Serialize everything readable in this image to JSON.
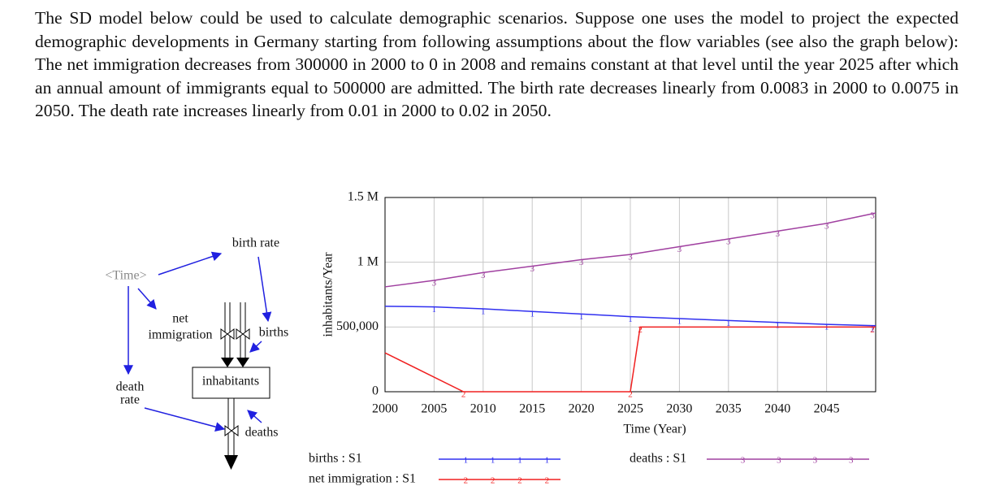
{
  "paragraph": "The SD model below could be used to calculate demographic scenarios. Suppose one uses the model to project the expected demographic developments in Germany starting from following assumptions about the flow variables (see also the graph below): The net immigration decreases from 300000 in 2000 to 0 in 2008 and remains constant at that level until the year 2025 after which an annual amount of immigrants equal to 500000 are admitted. The birth rate decreases linearly from 0.0083 in 2000 to 0.0075 in 2050. The death rate increases linearly from 0.01 in 2000 to 0.02 in 2050.",
  "diagram": {
    "nodes": [
      {
        "label": [
          "<Time>"
        ]
      },
      {
        "label": [
          "birth rate"
        ]
      },
      {
        "label": [
          "net",
          "immigration"
        ]
      },
      {
        "label": [
          "births"
        ]
      },
      {
        "label": [
          "inhabitants"
        ]
      },
      {
        "label": [
          "death",
          "rate"
        ]
      },
      {
        "label": [
          "deaths"
        ]
      }
    ]
  },
  "chart_data": {
    "type": "line",
    "ylabel": "inhabitants/Year",
    "xlabel": "Time (Year)",
    "x": [
      2000,
      2005,
      2010,
      2015,
      2020,
      2025,
      2030,
      2035,
      2040,
      2045,
      2050
    ],
    "series": [
      {
        "name": "births : S1",
        "marker": "1",
        "color": "#3030f0",
        "values": [
          660000,
          655000,
          640000,
          620000,
          600000,
          580000,
          565000,
          550000,
          535000,
          520000,
          510000
        ]
      },
      {
        "name": "net immigration : S1",
        "marker": "2",
        "color": "#f02020",
        "x": [
          2000,
          2008,
          2025,
          2026,
          2050
        ],
        "values": [
          300000,
          0,
          0,
          500000,
          500000
        ]
      },
      {
        "name": "deaths : S1",
        "marker": "3",
        "color": "#a040a0",
        "values": [
          810000,
          860000,
          920000,
          970000,
          1020000,
          1060000,
          1120000,
          1180000,
          1240000,
          1300000,
          1380000
        ]
      }
    ],
    "xlim": [
      2000,
      2050
    ],
    "xticks": [
      2000,
      2005,
      2010,
      2015,
      2020,
      2025,
      2030,
      2035,
      2040,
      2045
    ],
    "ylim": [
      0,
      1500000
    ],
    "yticks": [
      0,
      {
        "value": 500000,
        "label": "500,000"
      },
      {
        "value": 1000000,
        "label": "1 M"
      },
      {
        "value": 1500000,
        "label": "1.5 M"
      }
    ],
    "grid": true
  }
}
